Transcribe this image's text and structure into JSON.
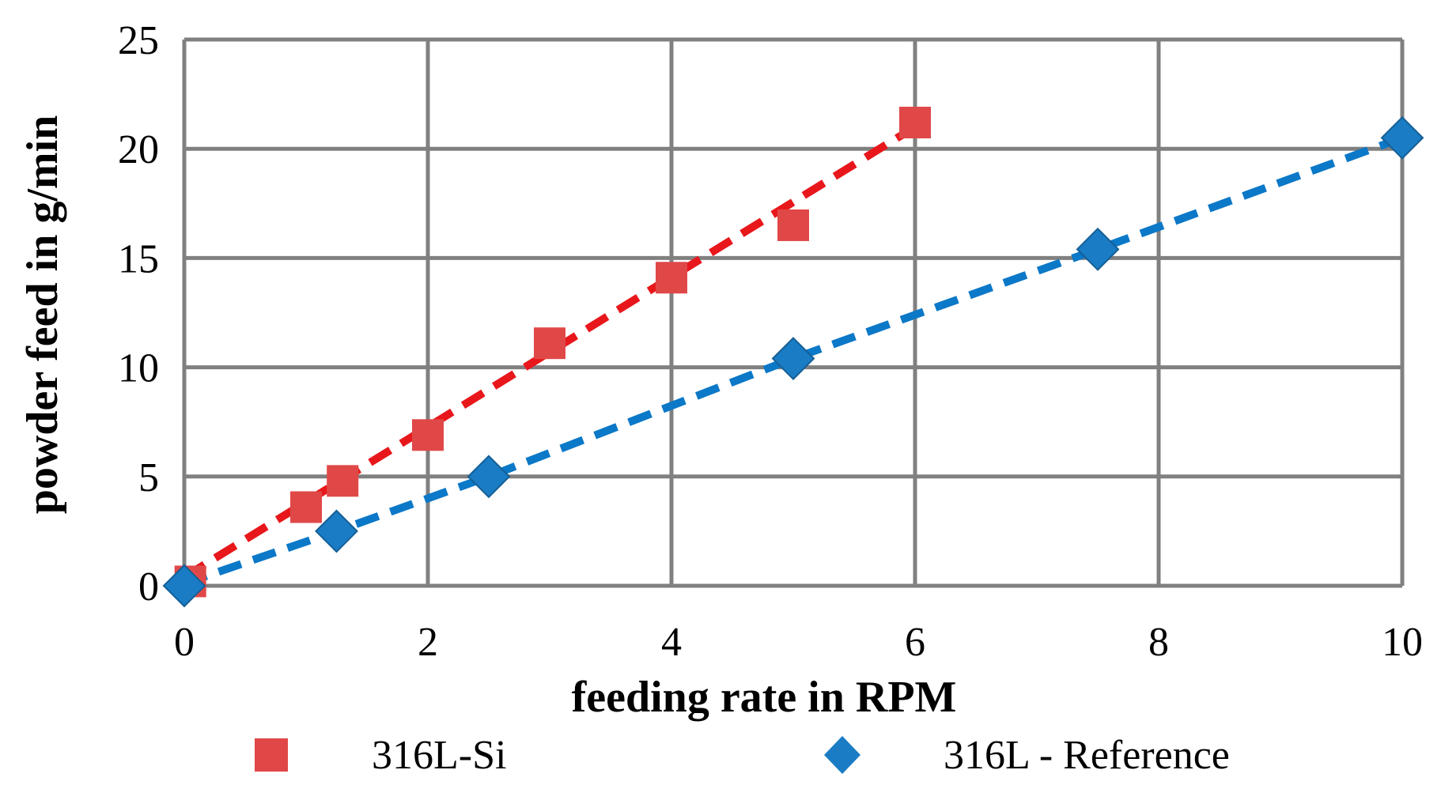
{
  "chart_data": {
    "type": "scatter",
    "title": "",
    "xlabel": "feeding rate in RPM",
    "ylabel": "powder feed in  g/min",
    "xlim": [
      0,
      10
    ],
    "ylim": [
      0,
      25
    ],
    "xticks": [
      "0",
      "2",
      "4",
      "6",
      "8",
      "10"
    ],
    "yticks": [
      "0",
      "5",
      "10",
      "15",
      "20",
      "25"
    ],
    "grid": true,
    "legend_position": "bottom",
    "series": [
      {
        "name": "316L-Si",
        "marker": "square",
        "color": "#e04848",
        "trend_color": "#e8171b",
        "trendline": "dashed-linear",
        "x": [
          0.05,
          1.0,
          1.3,
          2.0,
          3.0,
          4.0,
          5.0,
          6.0
        ],
        "y": [
          0.2,
          3.6,
          4.8,
          6.9,
          11.1,
          14.1,
          16.5,
          21.2
        ],
        "trend": [
          [
            0.0,
            0.4
          ],
          [
            6.0,
            21.0
          ]
        ]
      },
      {
        "name": "316L - Reference",
        "marker": "diamond",
        "color": "#1a7cc4",
        "trend_color": "#0b78c8",
        "trendline": "dashed-segments",
        "x": [
          0.0,
          1.25,
          2.5,
          5.0,
          7.5,
          10.0
        ],
        "y": [
          0.0,
          2.5,
          5.0,
          10.4,
          15.4,
          20.5
        ],
        "trend": [
          [
            0.0,
            0.1
          ],
          [
            1.25,
            2.5
          ],
          [
            2.5,
            5.0
          ],
          [
            5.0,
            10.4
          ],
          [
            7.5,
            15.4
          ],
          [
            10.0,
            20.5
          ]
        ]
      }
    ]
  }
}
